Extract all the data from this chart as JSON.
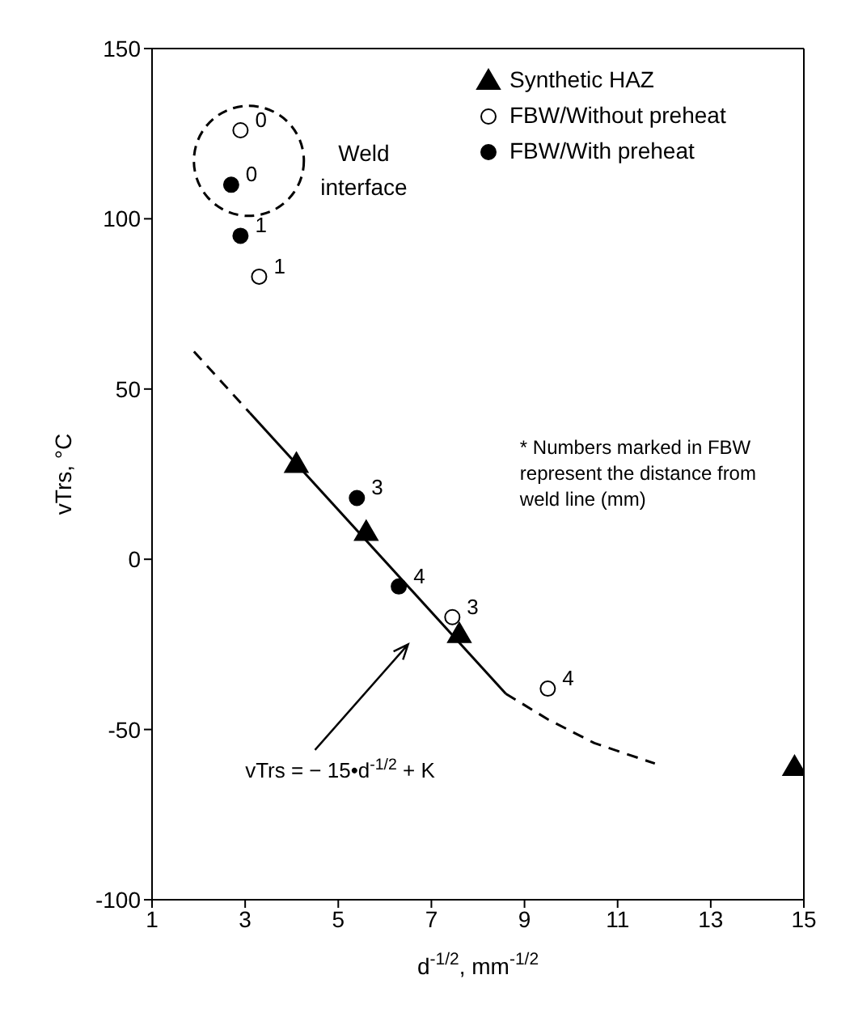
{
  "chart_data": {
    "type": "scatter",
    "xlabel": "d$^{-1/2}$, mm$^{-1/2}$",
    "ylabel": "vTrs, °C",
    "xlim": [
      1,
      15
    ],
    "xticks": [
      1,
      3,
      5,
      7,
      9,
      11,
      13,
      15
    ],
    "ylim": [
      -100,
      150
    ],
    "yticks": [
      -100,
      -50,
      0,
      50,
      100,
      150
    ],
    "legend": "top right",
    "annotations": [
      "Weld interface",
      "* Numbers marked in FBW represent the distance from weld line (mm)",
      "vTrs = − 15•d$^{-1/2}$ + K",
      {
        "text": "0",
        "x": 2.9,
        "y": 126
      },
      {
        "text": "1",
        "x": 3.3,
        "y": 83
      },
      {
        "text": "3",
        "x": 7.45,
        "y": -17
      },
      {
        "text": "4",
        "x": 9.5,
        "y": -38
      },
      {
        "text": "0",
        "x": 2.7,
        "y": 110
      },
      {
        "text": "1",
        "x": 2.9,
        "y": 95
      },
      {
        "text": "3",
        "x": 5.4,
        "y": 18
      },
      {
        "text": "4",
        "x": 6.3,
        "y": -8
      }
    ],
    "series": [
      {
        "name": "Synthetic HAZ",
        "marker": "triangle",
        "color": "#000000",
        "x": [
          4.1,
          5.6,
          7.6,
          14.8
        ],
        "values": [
          28,
          8,
          -22,
          -61
        ]
      },
      {
        "name": "FBW/Without preheat",
        "marker": "circle",
        "color": "#ffffff",
        "x": [
          2.9,
          3.3,
          7.45,
          9.5
        ],
        "values": [
          126,
          83,
          -17,
          -38
        ]
      },
      {
        "name": "FBW/With preheat",
        "marker": "circle",
        "color": "#000000",
        "x": [
          2.7,
          2.9,
          5.4,
          6.3
        ],
        "values": [
          110,
          95,
          18,
          -8
        ]
      },
      {
        "type": "line",
        "line_style": "dashed",
        "color": "#000000",
        "x": [
          1.9,
          3.1
        ],
        "values": [
          61,
          43
        ]
      },
      {
        "type": "line",
        "line_style": "solid",
        "color": "#000000",
        "x": [
          3.1,
          8.6
        ],
        "values": [
          43,
          -39.5
        ]
      },
      {
        "type": "line",
        "line_style": "dashed",
        "color": "#000000",
        "x": [
          8.6,
          9.5,
          10.5,
          11.8
        ],
        "values": [
          -39.5,
          -47,
          -54,
          -60
        ]
      }
    ]
  }
}
